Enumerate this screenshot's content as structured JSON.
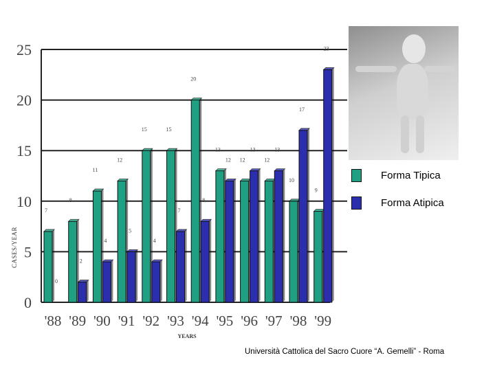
{
  "chart_data": {
    "type": "bar",
    "categories": [
      "'88",
      "'89",
      "'90",
      "'91",
      "'92",
      "'93",
      "'94",
      "'95",
      "'96",
      "'97",
      "'98",
      "'99"
    ],
    "series": [
      {
        "name": "Forma Tipica",
        "values": [
          7,
          8,
          11,
          12,
          15,
          15,
          20,
          13,
          12,
          12,
          10,
          9
        ],
        "color": "#1fa082"
      },
      {
        "name": "Forma Atipica",
        "values": [
          0,
          2,
          4,
          5,
          4,
          7,
          8,
          12,
          13,
          13,
          17,
          23
        ],
        "color": "#2b2fae"
      }
    ],
    "data_labels": {
      "tipica": [
        "7",
        "8",
        "11",
        "12",
        "15",
        "15",
        "20",
        "13",
        "12",
        "12",
        "10",
        "9"
      ],
      "atipica": [
        "0",
        "2",
        "4",
        "5",
        "4",
        "7",
        "8",
        "12",
        "13",
        "13",
        "17",
        "23"
      ]
    },
    "yticks": [
      "0",
      "5",
      "10",
      "15",
      "20",
      "25"
    ],
    "ylim": [
      0,
      25
    ],
    "ylabel": "CASES/YEAR",
    "xlabel": "YEARS",
    "grid": true,
    "legend": "right"
  },
  "legend": {
    "tipica_label": "Forma Tipica",
    "atipica_label": "Forma Atipica"
  },
  "footer": {
    "text": "Università Cattolica del Sacro Cuore “A. Gemelli” - Roma"
  }
}
